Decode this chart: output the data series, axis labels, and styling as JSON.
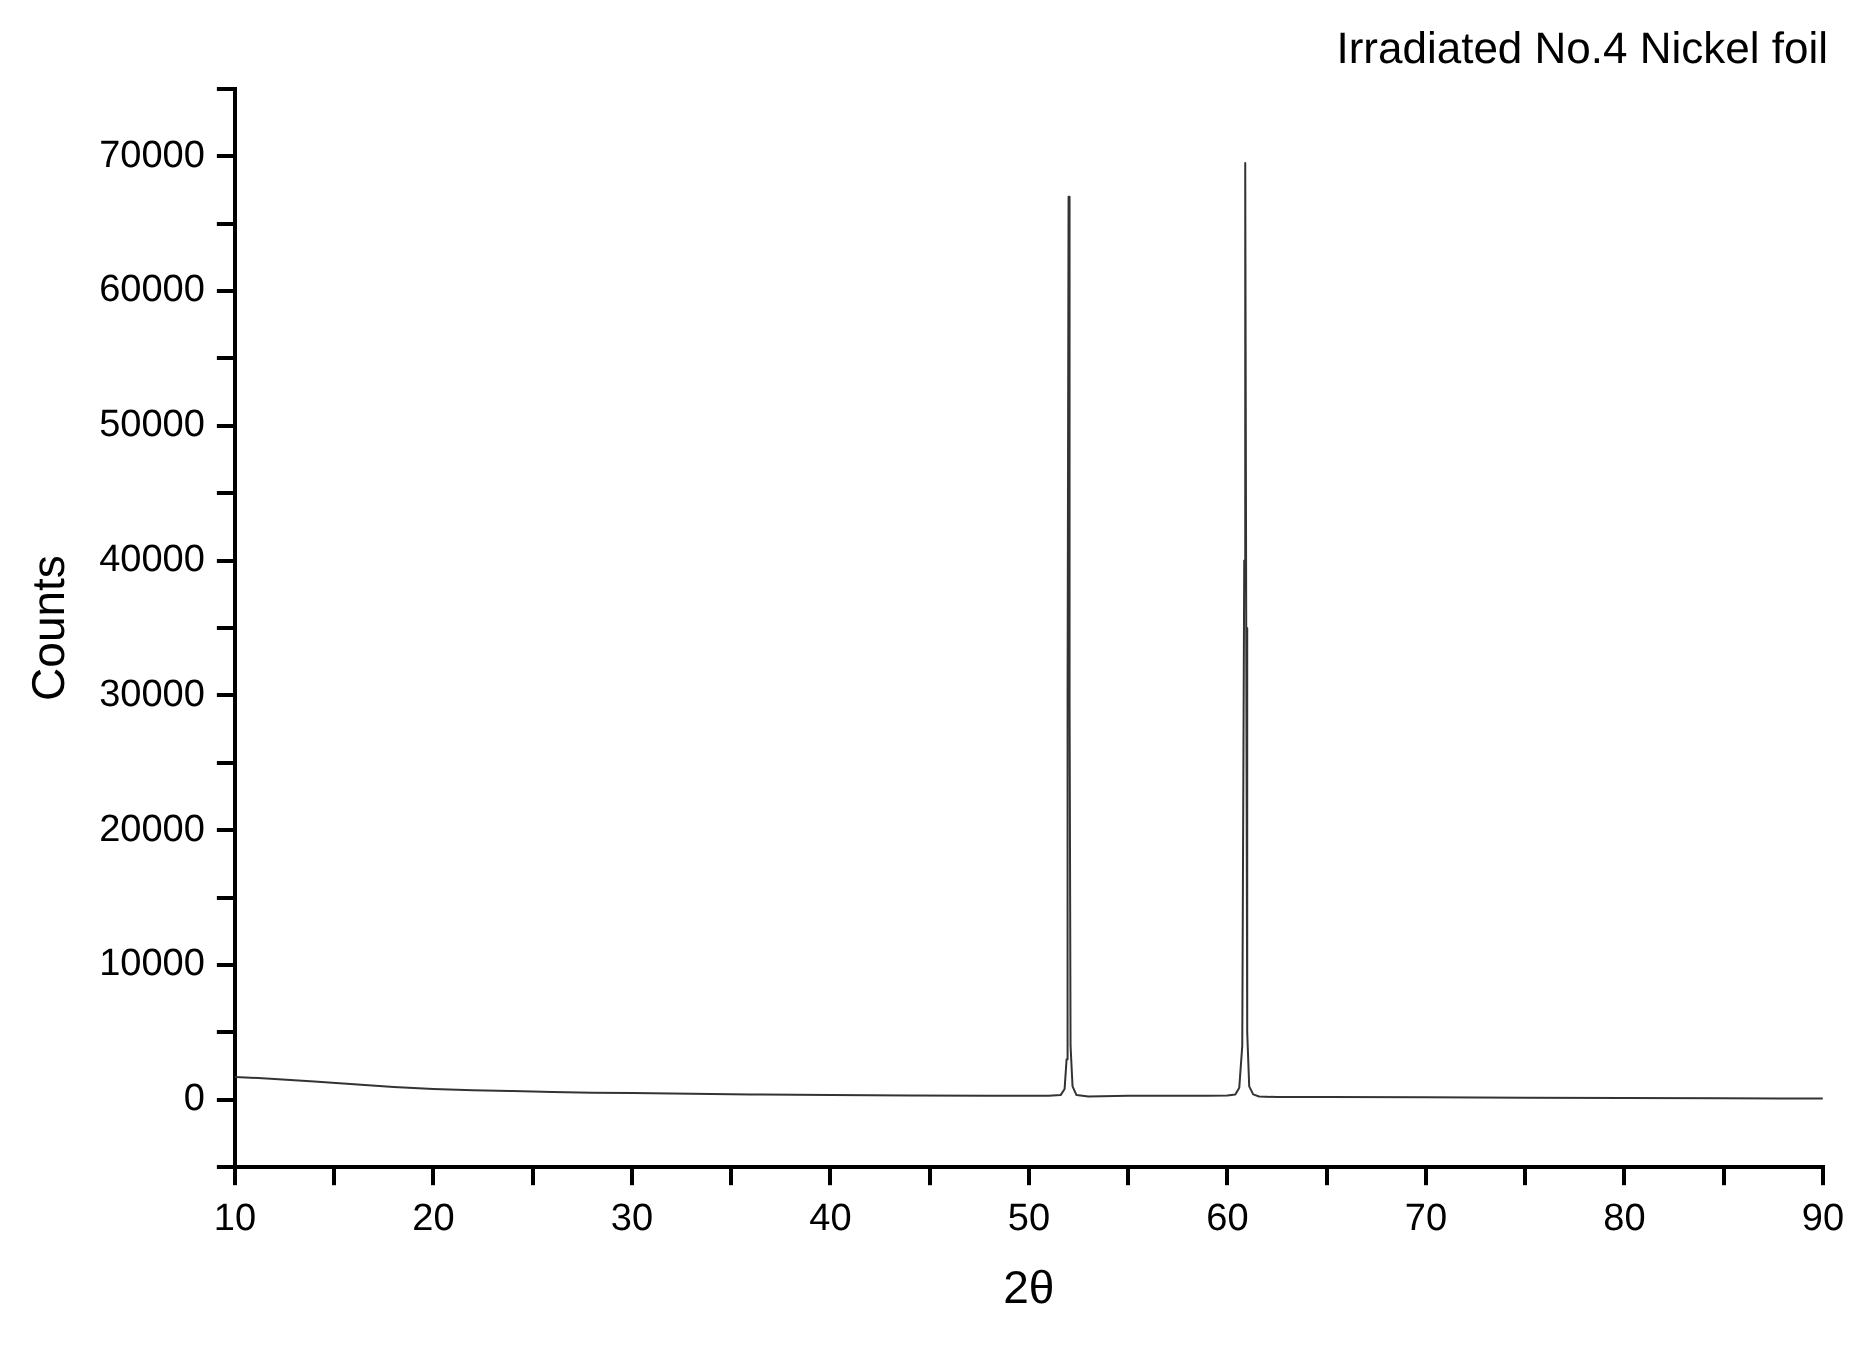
{
  "chart_data": {
    "type": "line",
    "title": "Irradiated No.4 Nickel foil",
    "xlabel": "2θ",
    "ylabel": "Counts",
    "grid": false,
    "legend": false,
    "marker": "none",
    "line_style": "solid",
    "xlim": [
      10,
      90
    ],
    "ylim": [
      -5000,
      75000
    ],
    "xticks": [
      10,
      {
        "value": 15,
        "label": null
      },
      20,
      {
        "value": 25,
        "label": null
      },
      30,
      {
        "value": 35,
        "label": null
      },
      40,
      {
        "value": 45,
        "label": null
      },
      50,
      {
        "value": 55,
        "label": null
      },
      60,
      {
        "value": 65,
        "label": null
      },
      70,
      {
        "value": 75,
        "label": null
      },
      80,
      {
        "value": 85,
        "label": null
      },
      90
    ],
    "yticks": [
      {
        "value": -5000,
        "label": null
      },
      0,
      {
        "value": 5000,
        "label": null
      },
      10000,
      {
        "value": 15000,
        "label": null
      },
      20000,
      {
        "value": 25000,
        "label": null
      },
      30000,
      {
        "value": 35000,
        "label": null
      },
      40000,
      {
        "value": 45000,
        "label": null
      },
      50000,
      {
        "value": 55000,
        "label": null
      },
      60000,
      {
        "value": 65000,
        "label": null
      },
      70000,
      {
        "value": 75000,
        "label": null
      }
    ],
    "series": [
      {
        "color": "#333333",
        "x": [
          10,
          12,
          14,
          16,
          18,
          20,
          22,
          24,
          26,
          28,
          30,
          33,
          36,
          40,
          44,
          48,
          50,
          51,
          51.6,
          51.8,
          51.9,
          51.95,
          52,
          52.05,
          52.1,
          52.2,
          52.4,
          53,
          55,
          57,
          59,
          60,
          60.4,
          60.6,
          60.75,
          60.85,
          60.9,
          60.95,
          61.0,
          61.1,
          61.3,
          61.6,
          62.5,
          65,
          70,
          75,
          80,
          85,
          90
        ],
        "values": [
          1700,
          1550,
          1350,
          1150,
          950,
          800,
          700,
          650,
          580,
          530,
          500,
          450,
          400,
          350,
          320,
          300,
          300,
          300,
          350,
          800,
          3000,
          30000,
          67000,
          30000,
          4000,
          1000,
          350,
          250,
          300,
          300,
          300,
          320,
          400,
          900,
          4000,
          40000,
          69500,
          35000,
          5000,
          1000,
          400,
          250,
          200,
          200,
          180,
          150,
          130,
          110,
          100
        ]
      }
    ]
  }
}
